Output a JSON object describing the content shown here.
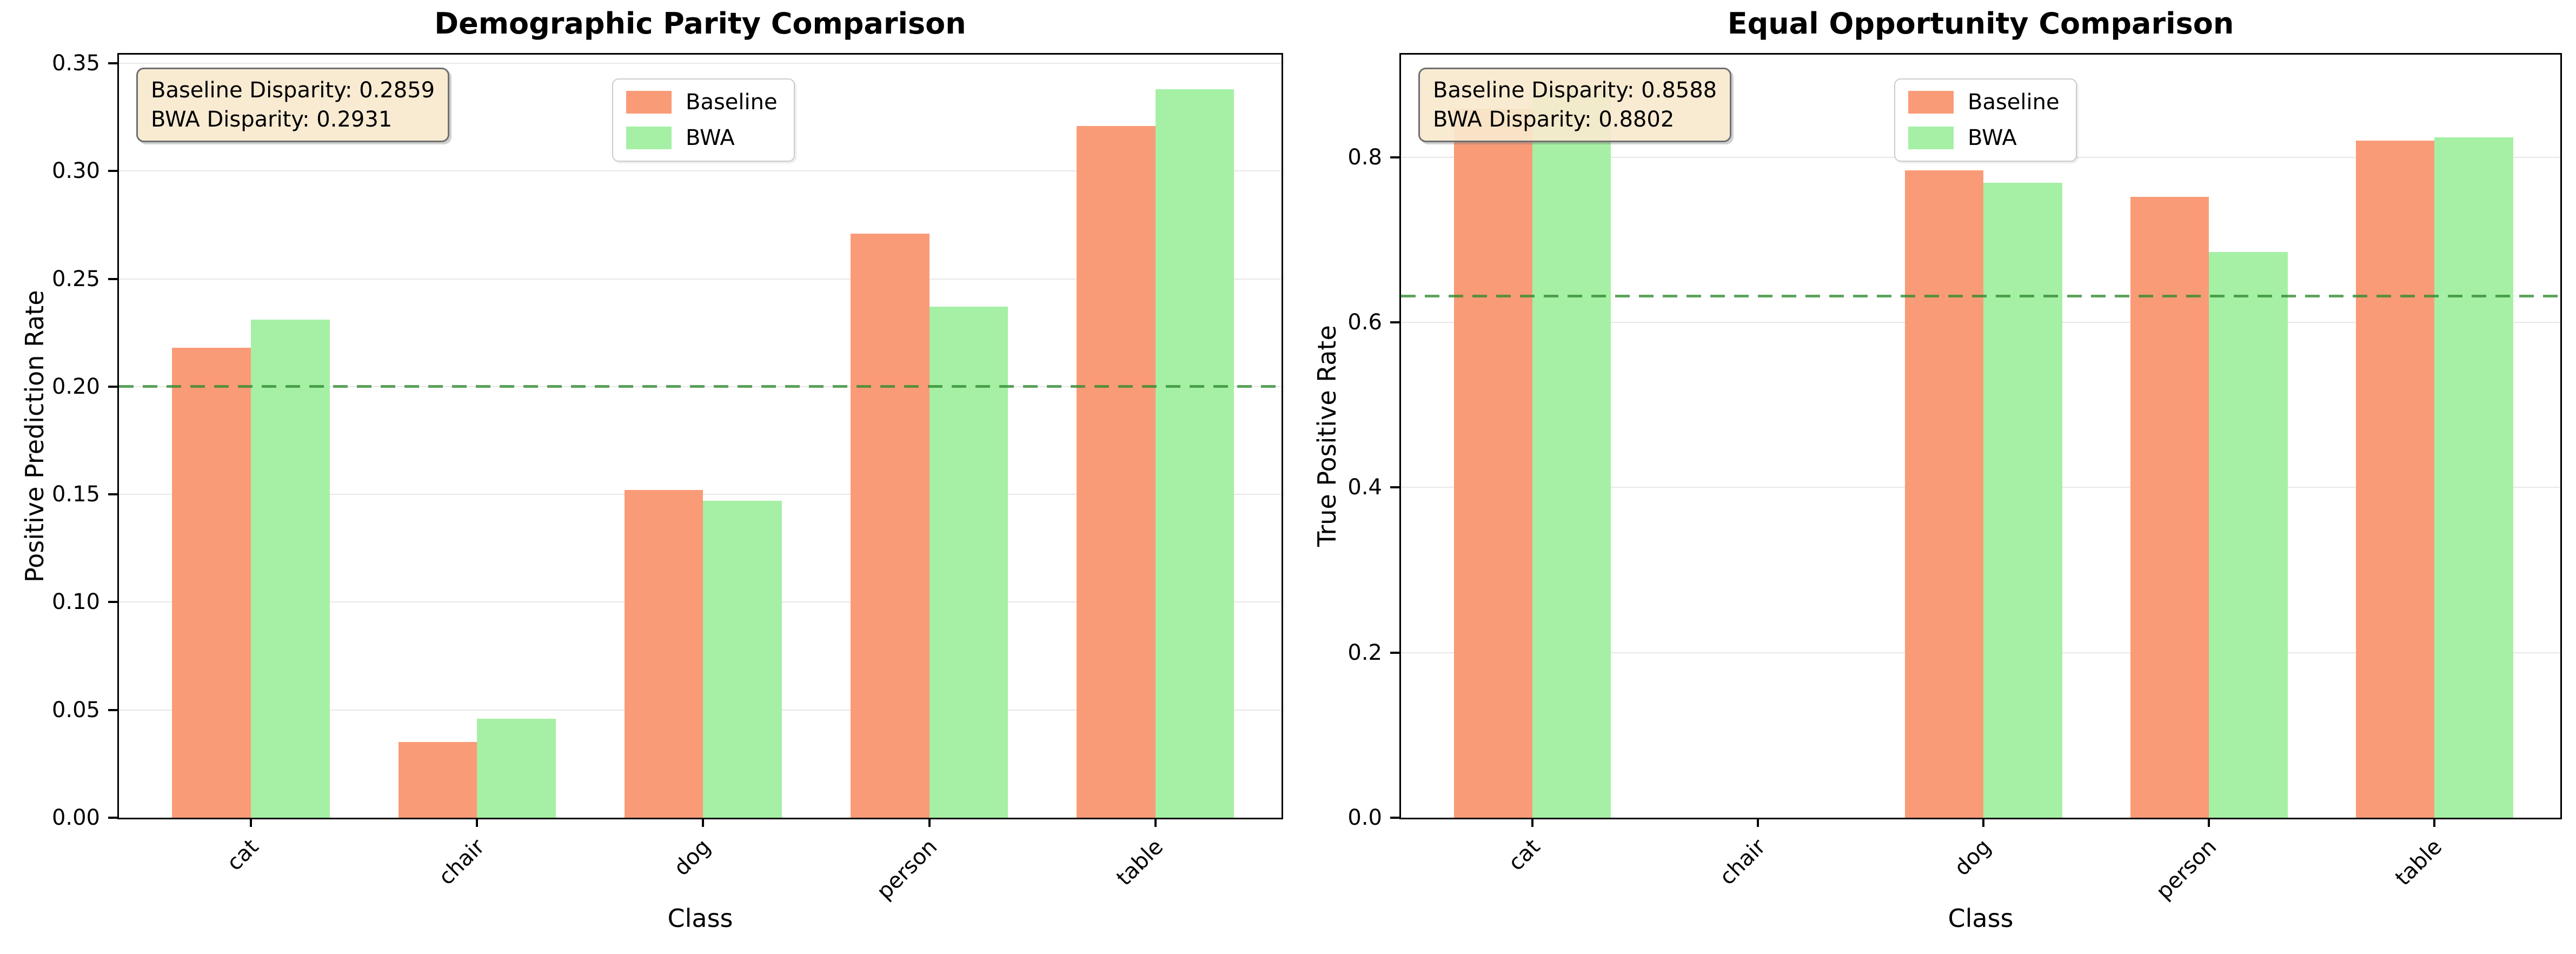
{
  "figure": {
    "background": "#ffffff"
  },
  "colors": {
    "baseline_bar": "#FA9B77",
    "bwa_bar": "#A5F0A5",
    "ref_line": "#2E8B2E",
    "grid": "#E7E7E7",
    "annotation_bg": "#F7E9CE",
    "annotation_border": "#6F6F6F",
    "spine": "#000000"
  },
  "chart_data": [
    {
      "type": "bar",
      "title": "Demographic Parity Comparison",
      "xlabel": "Class",
      "ylabel": "Positive Prediction Rate",
      "categories": [
        "cat",
        "chair",
        "dog",
        "person",
        "table"
      ],
      "series": [
        {
          "name": "Baseline",
          "color": "#FA9B77",
          "values": [
            0.218,
            0.035,
            0.152,
            0.271,
            0.321
          ]
        },
        {
          "name": "BWA",
          "color": "#A5F0A5",
          "values": [
            0.231,
            0.046,
            0.147,
            0.237,
            0.338
          ]
        }
      ],
      "ylim": [
        0,
        0.354
      ],
      "yticks": [
        0,
        0.05,
        0.1,
        0.15,
        0.2,
        0.25,
        0.3,
        0.35
      ],
      "ytick_labels": [
        "0.00",
        "0.05",
        "0.10",
        "0.15",
        "0.20",
        "0.25",
        "0.30",
        "0.35"
      ],
      "ref_line": {
        "value": 0.2,
        "style": "dashed",
        "color": "#2E8B2E"
      },
      "grid": true,
      "legend_position": "upper center",
      "legend_entries": [
        "Baseline",
        "BWA"
      ],
      "annotation": {
        "line1": "Baseline Disparity: 0.2859",
        "line2": "BWA Disparity: 0.2931"
      }
    },
    {
      "type": "bar",
      "title": "Equal Opportunity Comparison",
      "xlabel": "Class",
      "ylabel": "True Positive Rate",
      "categories": [
        "cat",
        "chair",
        "dog",
        "person",
        "table"
      ],
      "series": [
        {
          "name": "Baseline",
          "color": "#FA9B77",
          "values": [
            0.8588,
            0.0,
            0.784,
            0.752,
            0.82
          ]
        },
        {
          "name": "BWA",
          "color": "#A5F0A5",
          "values": [
            0.8802,
            0.0,
            0.769,
            0.685,
            0.824
          ]
        }
      ],
      "ylim": [
        0,
        0.9242
      ],
      "yticks": [
        0,
        0.2,
        0.4,
        0.6,
        0.8
      ],
      "ytick_labels": [
        "0.0",
        "0.2",
        "0.4",
        "0.6",
        "0.8"
      ],
      "ref_line": {
        "value": 0.632,
        "style": "dashed",
        "color": "#2E8B2E"
      },
      "grid": true,
      "legend_position": "upper center",
      "legend_entries": [
        "Baseline",
        "BWA"
      ],
      "annotation": {
        "line1": "Baseline Disparity: 0.8588",
        "line2": "BWA Disparity: 0.8802"
      }
    }
  ]
}
